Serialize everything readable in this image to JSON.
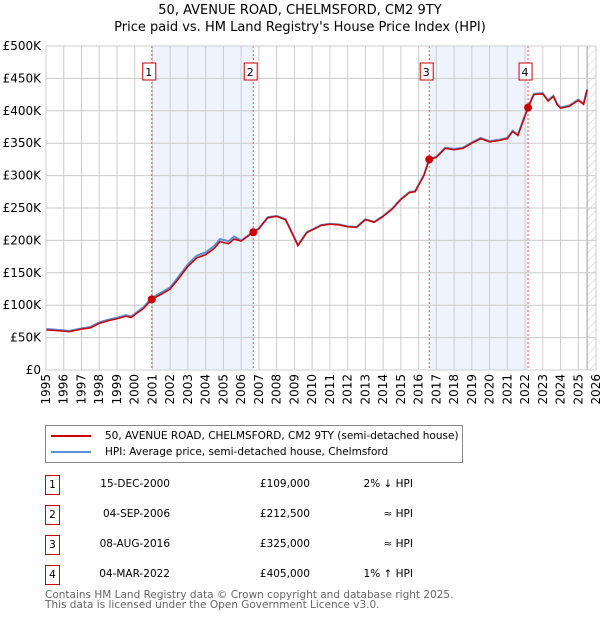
{
  "chart_data": {
    "type": "line",
    "title": "50, AVENUE ROAD, CHELMSFORD, CM2 9TY",
    "subtitle": "Price paid vs. HM Land Registry's House Price Index (HPI)",
    "xlim": [
      1995,
      2026
    ],
    "ylim": [
      0,
      500000
    ],
    "y_ticks": [
      "£0",
      "£50K",
      "£100K",
      "£150K",
      "£200K",
      "£250K",
      "£300K",
      "£350K",
      "£400K",
      "£450K",
      "£500K"
    ],
    "x_ticks": [
      "1995",
      "1996",
      "1997",
      "1998",
      "1999",
      "2000",
      "2001",
      "2002",
      "2003",
      "2004",
      "2005",
      "2006",
      "2007",
      "2008",
      "2009",
      "2010",
      "2011",
      "2012",
      "2013",
      "2014",
      "2015",
      "2016",
      "2017",
      "2018",
      "2019",
      "2020",
      "2021",
      "2022",
      "2023",
      "2024",
      "2025",
      "2026"
    ],
    "grid": true,
    "legend_position": "bottom",
    "series": [
      {
        "name": "50, AVENUE ROAD, CHELMSFORD, CM2 9TY (semi-detached house)",
        "color": "#cc0000",
        "x": [
          1995,
          1995.5,
          1996,
          1996.3,
          1997,
          1997.5,
          1998,
          1998.5,
          1999,
          1999.5,
          1999.8,
          2000,
          2000.5,
          2000.96,
          2001.5,
          2002,
          2002.5,
          2003,
          2003.5,
          2004,
          2004.5,
          2004.8,
          2005.3,
          2005.6,
          2006,
          2006.68,
          2007,
          2007.5,
          2008,
          2008.5,
          2008.8,
          2009.2,
          2009.7,
          2010,
          2010.5,
          2011,
          2011.5,
          2012,
          2012.5,
          2013,
          2013.5,
          2014,
          2014.5,
          2015,
          2015.5,
          2015.8,
          2016,
          2016.3,
          2016.6,
          2017,
          2017.5,
          2018,
          2018.5,
          2019,
          2019.5,
          2020,
          2020.5,
          2021,
          2021.3,
          2021.6,
          2022.17,
          2022.5,
          2023,
          2023.3,
          2023.6,
          2023.8,
          2024,
          2024.5,
          2025,
          2025.3,
          2025.5
        ],
        "y": [
          62,
          61,
          60,
          59,
          63,
          65,
          72,
          76,
          79,
          83,
          81,
          85,
          95,
          109,
          117,
          125,
          142,
          160,
          173,
          178,
          188,
          198,
          195,
          202,
          199,
          212.5,
          218,
          235,
          237,
          232,
          215,
          192,
          212,
          216,
          223,
          225,
          224,
          221,
          220,
          232,
          228,
          237,
          248,
          263,
          274,
          275,
          285,
          300,
          325,
          328,
          342,
          340,
          342,
          350,
          357,
          352,
          354,
          357,
          368,
          362,
          405,
          425,
          426,
          415,
          422,
          410,
          404,
          407,
          416,
          410,
          432
        ]
      },
      {
        "name": "HPI: Average price, semi-detached house, Chelmsford",
        "color": "#5b8fd6",
        "offset_pct_before_2006": 2
      }
    ],
    "sales": [
      {
        "label": "1",
        "x": 2000.96,
        "y": 109000
      },
      {
        "label": "2",
        "x": 2006.68,
        "y": 212500
      },
      {
        "label": "3",
        "x": 2016.6,
        "y": 325000
      },
      {
        "label": "4",
        "x": 2022.17,
        "y": 405000
      }
    ],
    "forecast_start": 2025.5
  },
  "title": "50, AVENUE ROAD, CHELMSFORD, CM2 9TY",
  "subtitle": "Price paid vs. HM Land Registry's House Price Index (HPI)",
  "legend": {
    "price": "50, AVENUE ROAD, CHELMSFORD, CM2 9TY (semi-detached house)",
    "hpi": "HPI: Average price, semi-detached house, Chelmsford"
  },
  "transactions": [
    {
      "num": "1",
      "date": "15-DEC-2000",
      "price": "£109,000",
      "hpi": "2% ↓ HPI"
    },
    {
      "num": "2",
      "date": "04-SEP-2006",
      "price": "£212,500",
      "hpi": "≈ HPI"
    },
    {
      "num": "3",
      "date": "08-AUG-2016",
      "price": "£325,000",
      "hpi": "≈ HPI"
    },
    {
      "num": "4",
      "date": "04-MAR-2022",
      "price": "£405,000",
      "hpi": "1% ↑ HPI"
    }
  ],
  "footer": [
    "Contains HM Land Registry data © Crown copyright and database right 2025.",
    "This data is licensed under the Open Government Licence v3.0."
  ]
}
